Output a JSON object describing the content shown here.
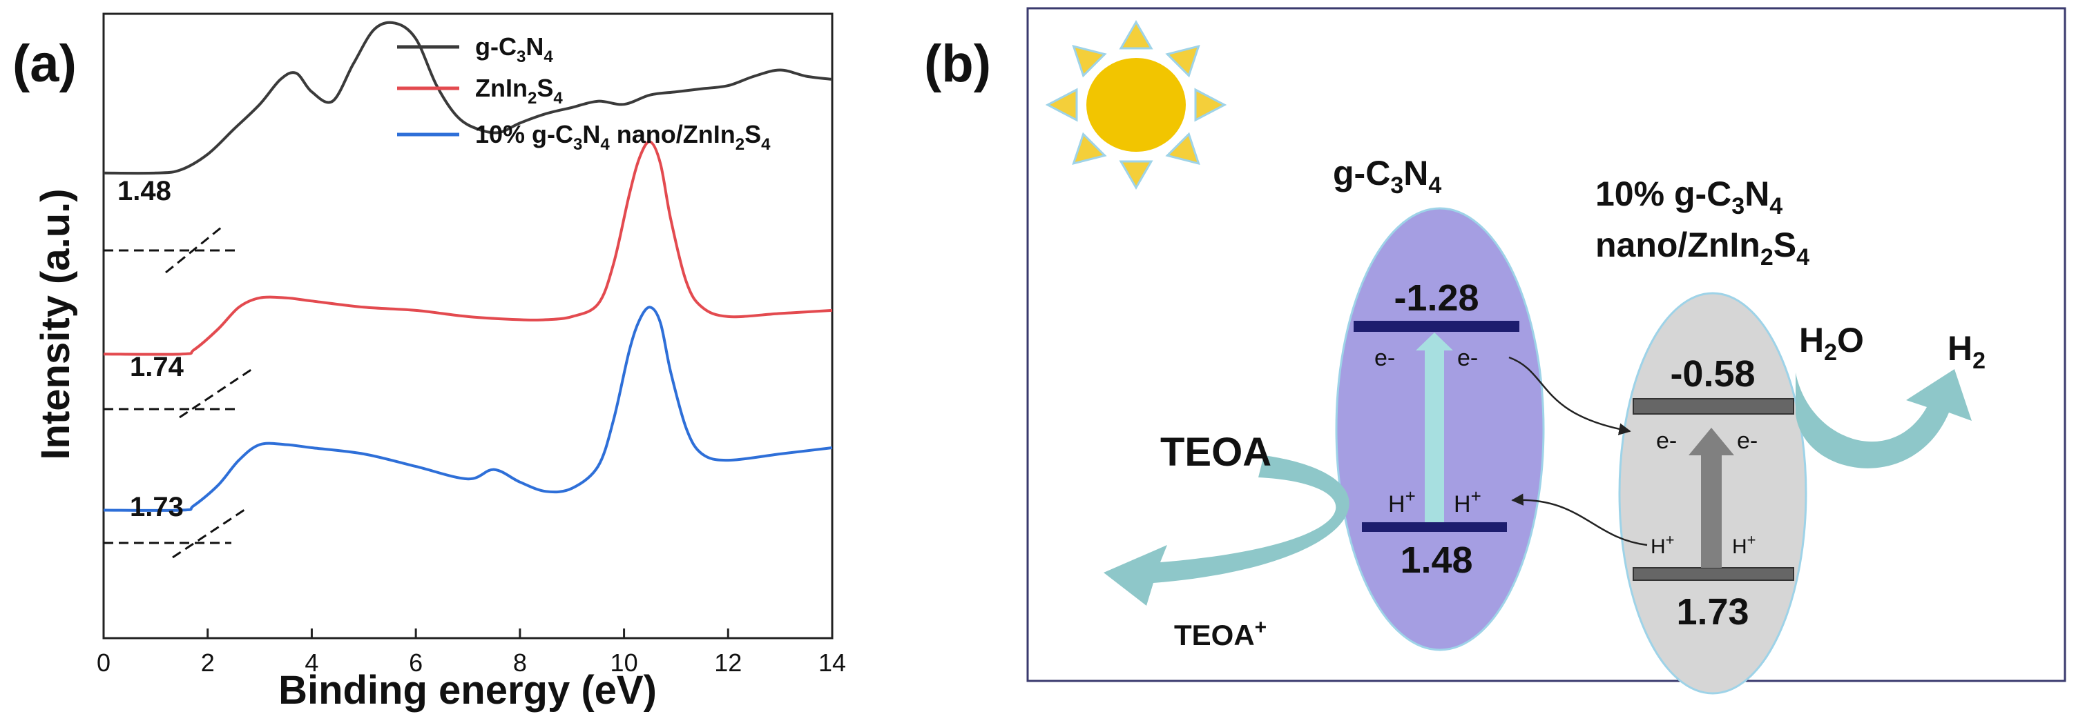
{
  "panel_a": {
    "label": "(a)",
    "legend": [
      {
        "base": "g-C",
        "sub1": "3",
        "mid": "N",
        "sub2": "4",
        "tail": ""
      },
      {
        "base": "ZnIn",
        "sub1": "2",
        "mid": "S",
        "sub2": "4",
        "tail": ""
      },
      {
        "base": "10% g-C",
        "sub1": "3",
        "mid": "N",
        "sub2": "4",
        "tail": " nano/ZnIn",
        "sub3": "2",
        "mid2": "S",
        "sub4": "4"
      }
    ]
  },
  "chart_data": {
    "type": "line",
    "title": "",
    "xlabel": "Binding energy (eV)",
    "ylabel": "Intensity (a.u.)",
    "xlim": [
      0,
      14
    ],
    "ylim": [
      0,
      10
    ],
    "xticks": [
      0,
      2,
      4,
      6,
      8,
      10,
      12,
      14
    ],
    "legend_position": "top-center",
    "series": [
      {
        "name": "g-C3N4",
        "color": "#3a3a3a",
        "onset_label": "1.48",
        "x": [
          0,
          1.0,
          1.48,
          2.0,
          2.5,
          3.0,
          3.4,
          3.7,
          4.0,
          4.4,
          4.8,
          5.2,
          5.6,
          6.0,
          6.4,
          6.8,
          7.2,
          7.6,
          8.0,
          8.5,
          9.0,
          9.5,
          10.0,
          10.5,
          11.0,
          11.5,
          12.0,
          12.5,
          13.0,
          13.5,
          14.0
        ],
        "y": [
          7.45,
          7.45,
          7.5,
          7.75,
          8.15,
          8.55,
          8.95,
          9.05,
          8.75,
          8.6,
          9.2,
          9.75,
          9.85,
          9.6,
          8.85,
          8.35,
          8.15,
          8.1,
          8.25,
          8.4,
          8.5,
          8.6,
          8.55,
          8.7,
          8.75,
          8.8,
          8.85,
          9.0,
          9.1,
          9.0,
          8.95
        ]
      },
      {
        "name": "ZnIn2S4",
        "color": "#e34a4f",
        "onset_label": "1.74",
        "x": [
          0,
          1.5,
          1.74,
          2.2,
          2.6,
          3.0,
          3.5,
          4.0,
          5.0,
          6.0,
          7.0,
          8.0,
          8.5,
          9.0,
          9.5,
          9.8,
          10.1,
          10.3,
          10.5,
          10.7,
          10.9,
          11.2,
          11.5,
          12.0,
          13.0,
          14.0
        ],
        "y": [
          4.55,
          4.55,
          4.62,
          4.95,
          5.3,
          5.45,
          5.45,
          5.4,
          5.3,
          5.25,
          5.15,
          5.1,
          5.1,
          5.15,
          5.35,
          6.0,
          7.1,
          7.7,
          7.95,
          7.6,
          6.7,
          5.7,
          5.3,
          5.15,
          5.2,
          5.25
        ]
      },
      {
        "name": "10% g-C3N4 nano/ZnIn2S4",
        "color": "#2e6fd8",
        "onset_label": "1.73",
        "x": [
          0,
          1.5,
          1.73,
          2.2,
          2.6,
          3.0,
          3.5,
          4.0,
          5.0,
          6.0,
          7.0,
          7.5,
          8.0,
          8.5,
          9.0,
          9.5,
          9.8,
          10.1,
          10.3,
          10.5,
          10.7,
          10.9,
          11.2,
          11.5,
          12.0,
          13.0,
          14.0
        ],
        "y": [
          2.05,
          2.05,
          2.12,
          2.45,
          2.85,
          3.1,
          3.1,
          3.05,
          2.95,
          2.75,
          2.55,
          2.7,
          2.5,
          2.35,
          2.4,
          2.75,
          3.5,
          4.6,
          5.1,
          5.3,
          5.05,
          4.25,
          3.35,
          2.95,
          2.85,
          2.95,
          3.05
        ]
      }
    ]
  },
  "panel_b": {
    "label": "(b)",
    "gcn_title": {
      "a": "g-C",
      "s1": "3",
      "b": "N",
      "s2": "4"
    },
    "composite_title_line1": {
      "a": "10% g-C",
      "s1": "3",
      "b": "N",
      "s2": "4"
    },
    "composite_title_line2": {
      "a": "nano/ZnIn",
      "s1": "2",
      "b": "S",
      "s2": "4"
    },
    "gcn_cb": "-1.28",
    "gcn_vb": "1.48",
    "composite_cb": "-0.58",
    "composite_vb": "1.73",
    "electron": "e-",
    "hole": "H",
    "hole_sup": "+",
    "water": {
      "a": "H",
      "s": "2",
      "b": "O"
    },
    "hydrogen": {
      "a": "H",
      "s": "2"
    },
    "teoa": "TEOA",
    "teoa_ox": "TEOA",
    "teoa_ox_sup": "+",
    "colors": {
      "sun": "#f2c500",
      "sun_rays": "#f4cf3a",
      "ray_outline": "#9ed3e8",
      "gcn_ellipse": "#a59ee2",
      "gcn_bar": "#1d1d6e",
      "composite_ellipse": "#d6d6d6",
      "composite_bar": "#666666",
      "arrow_teal": "#8ec7c9",
      "frame": "#3a3a6e"
    }
  }
}
